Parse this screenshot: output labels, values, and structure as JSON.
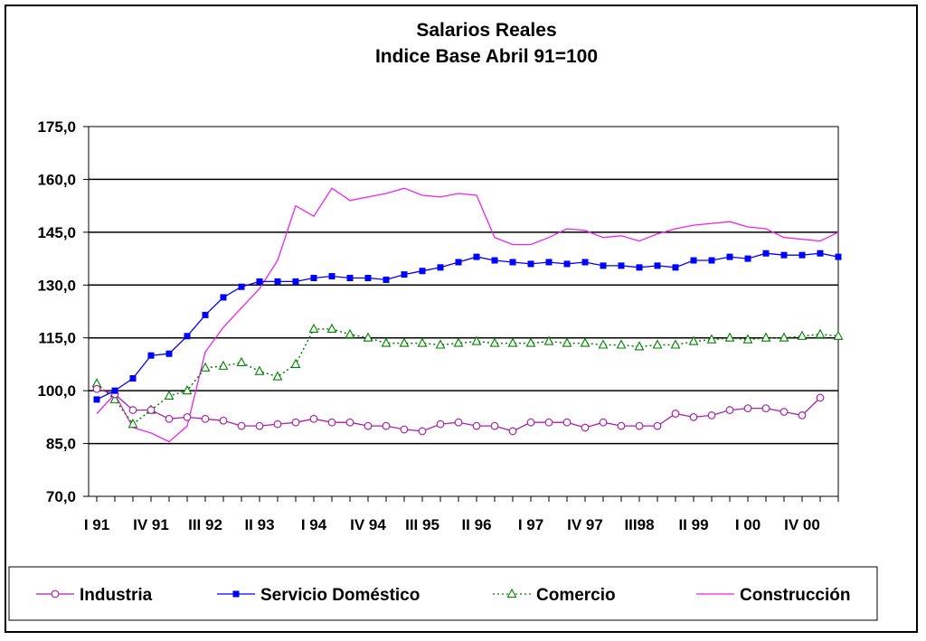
{
  "chart_data": {
    "type": "line",
    "title": "Salarios Reales",
    "subtitle": "Indice Base Abril 91=100",
    "xlabel": "",
    "ylabel": "",
    "ylim": [
      70,
      175
    ],
    "y_ticks": [
      "70,0",
      "85,0",
      "100,0",
      "115,0",
      "130,0",
      "145,0",
      "160,0",
      "175,0"
    ],
    "x_tick_labels": [
      "I 91",
      "IV 91",
      "III 92",
      "II 93",
      "I 94",
      "IV 94",
      "III 95",
      "II 96",
      "I 97",
      "IV 97",
      "III98",
      "II 99",
      "I 00",
      "IV 00"
    ],
    "grid": true,
    "legend_position": "bottom",
    "series": [
      {
        "name": "Industria",
        "color": "#aa22aa",
        "marker": "circle",
        "line": "solid",
        "values": [
          100.5,
          99.0,
          94.5,
          94.5,
          92.0,
          92.5,
          92.0,
          91.5,
          90.0,
          90.0,
          90.5,
          91.0,
          92.0,
          91.0,
          91.0,
          90.0,
          90.0,
          89.0,
          88.5,
          90.5,
          91.0,
          90.0,
          90.0,
          88.5,
          91.0,
          91.0,
          91.0,
          89.5,
          91.0,
          90.0,
          90.0,
          90.0,
          93.5,
          92.5,
          93.0,
          94.5,
          95.0,
          95.0,
          94.0,
          93.0,
          98.0
        ]
      },
      {
        "name": "Servicio Doméstico",
        "color": "#0000ff",
        "marker": "square",
        "line": "solid",
        "values": [
          97.5,
          100.0,
          103.5,
          110.0,
          110.5,
          115.5,
          121.5,
          126.5,
          129.5,
          131.0,
          131.0,
          131.0,
          132.0,
          132.5,
          132.0,
          132.0,
          131.5,
          133.0,
          134.0,
          135.0,
          136.5,
          138.0,
          137.0,
          136.5,
          136.0,
          136.5,
          136.0,
          136.5,
          135.5,
          135.5,
          135.0,
          135.5,
          135.0,
          137.0,
          137.0,
          138.0,
          137.5,
          139.0,
          138.5,
          138.5,
          139.0,
          138.0
        ]
      },
      {
        "name": "Comercio",
        "color": "#008000",
        "marker": "triangle",
        "line": "dotted",
        "values": [
          102.0,
          97.5,
          90.5,
          94.5,
          98.5,
          100.0,
          106.5,
          107.0,
          108.0,
          105.5,
          104.0,
          107.5,
          117.5,
          117.5,
          116.0,
          115.0,
          113.5,
          113.5,
          113.5,
          113.0,
          113.5,
          114.0,
          113.5,
          113.5,
          113.5,
          114.0,
          113.5,
          113.5,
          113.0,
          113.0,
          112.5,
          113.0,
          113.0,
          114.0,
          114.5,
          115.0,
          114.5,
          115.0,
          115.0,
          115.5,
          116.0,
          115.5
        ]
      },
      {
        "name": "Construcción",
        "color": "#ee22ee",
        "marker": "none",
        "line": "solid",
        "values": [
          93.5,
          99.0,
          89.5,
          88.0,
          85.5,
          90.0,
          111.0,
          118.0,
          123.5,
          129.0,
          137.0,
          152.5,
          149.5,
          157.5,
          154.0,
          155.0,
          156.0,
          157.5,
          155.5,
          155.0,
          156.0,
          155.5,
          143.5,
          141.5,
          141.5,
          143.5,
          146.0,
          145.5,
          143.5,
          144.0,
          142.5,
          144.5,
          146.0,
          147.0,
          147.5,
          148.0,
          146.5,
          146.0,
          143.5,
          143.0,
          142.5,
          145.0
        ]
      }
    ]
  }
}
